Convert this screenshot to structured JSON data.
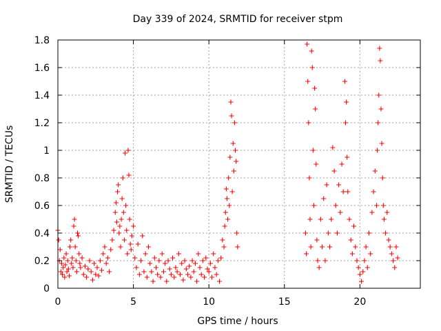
{
  "chart_data": {
    "type": "scatter",
    "title": "Day 339 of 2024, SRMTID for receiver stpm",
    "xlabel": "GPS time / hours",
    "ylabel": "SRMTID / TECUs",
    "xlim": [
      0,
      24
    ],
    "ylim": [
      0,
      1.8
    ],
    "xticks": [
      0,
      5,
      10,
      15,
      20
    ],
    "yticks": [
      0,
      0.2,
      0.4,
      0.6,
      0.8,
      1,
      1.2,
      1.4,
      1.6,
      1.8
    ],
    "xtick_labels": [
      "0",
      "5",
      "10",
      "15",
      "20"
    ],
    "ytick_labels": [
      "0",
      "0.2",
      "0.4",
      "0.6",
      "0.8",
      "1",
      "1.2",
      "1.4",
      "1.6",
      "1.8"
    ],
    "grid": true,
    "marker": "+",
    "color": "#ff0000",
    "series": [
      {
        "name": "SRMTID",
        "points": [
          [
            0.0,
            0.42
          ],
          [
            0.05,
            0.35
          ],
          [
            0.1,
            0.2
          ],
          [
            0.15,
            0.28
          ],
          [
            0.2,
            0.12
          ],
          [
            0.25,
            0.18
          ],
          [
            0.3,
            0.1
          ],
          [
            0.35,
            0.15
          ],
          [
            0.4,
            0.22
          ],
          [
            0.45,
            0.08
          ],
          [
            0.5,
            0.17
          ],
          [
            0.55,
            0.25
          ],
          [
            0.6,
            0.12
          ],
          [
            0.65,
            0.2
          ],
          [
            0.7,
            0.14
          ],
          [
            0.75,
            0.09
          ],
          [
            0.8,
            0.3
          ],
          [
            0.85,
            0.35
          ],
          [
            0.9,
            0.18
          ],
          [
            0.95,
            0.22
          ],
          [
            1.0,
            0.15
          ],
          [
            1.05,
            0.45
          ],
          [
            1.1,
            0.5
          ],
          [
            1.15,
            0.3
          ],
          [
            1.2,
            0.2
          ],
          [
            1.25,
            0.12
          ],
          [
            1.3,
            0.4
          ],
          [
            1.35,
            0.38
          ],
          [
            1.4,
            0.25
          ],
          [
            1.45,
            0.18
          ],
          [
            1.5,
            0.15
          ],
          [
            1.6,
            0.22
          ],
          [
            1.7,
            0.1
          ],
          [
            1.8,
            0.16
          ],
          [
            1.9,
            0.08
          ],
          [
            2.0,
            0.14
          ],
          [
            2.1,
            0.2
          ],
          [
            2.2,
            0.12
          ],
          [
            2.3,
            0.06
          ],
          [
            2.4,
            0.18
          ],
          [
            2.5,
            0.1
          ],
          [
            2.6,
            0.15
          ],
          [
            2.7,
            0.09
          ],
          [
            2.8,
            0.2
          ],
          [
            2.9,
            0.13
          ],
          [
            3.0,
            0.25
          ],
          [
            3.1,
            0.3
          ],
          [
            3.2,
            0.18
          ],
          [
            3.3,
            0.22
          ],
          [
            3.4,
            0.12
          ],
          [
            3.5,
            0.28
          ],
          [
            3.6,
            0.35
          ],
          [
            3.7,
            0.42
          ],
          [
            3.8,
            0.55
          ],
          [
            3.85,
            0.62
          ],
          [
            3.9,
            0.48
          ],
          [
            3.95,
            0.7
          ],
          [
            4.0,
            0.75
          ],
          [
            4.05,
            0.4
          ],
          [
            4.1,
            0.45
          ],
          [
            4.15,
            0.3
          ],
          [
            4.2,
            0.5
          ],
          [
            4.25,
            0.65
          ],
          [
            4.3,
            0.8
          ],
          [
            4.35,
            0.55
          ],
          [
            4.4,
            0.35
          ],
          [
            4.45,
            0.98
          ],
          [
            4.5,
            0.6
          ],
          [
            4.55,
            0.42
          ],
          [
            4.6,
            0.25
          ],
          [
            4.65,
            1.0
          ],
          [
            4.7,
            0.82
          ],
          [
            4.75,
            0.5
          ],
          [
            4.8,
            0.32
          ],
          [
            4.85,
            0.28
          ],
          [
            4.9,
            0.38
          ],
          [
            5.0,
            0.45
          ],
          [
            5.1,
            0.22
          ],
          [
            5.2,
            0.15
          ],
          [
            5.3,
            0.32
          ],
          [
            5.4,
            0.1
          ],
          [
            5.5,
            0.2
          ],
          [
            5.6,
            0.38
          ],
          [
            5.7,
            0.12
          ],
          [
            5.8,
            0.25
          ],
          [
            5.9,
            0.08
          ],
          [
            6.0,
            0.3
          ],
          [
            6.1,
            0.18
          ],
          [
            6.2,
            0.12
          ],
          [
            6.3,
            0.05
          ],
          [
            6.4,
            0.22
          ],
          [
            6.5,
            0.15
          ],
          [
            6.6,
            0.1
          ],
          [
            6.7,
            0.2
          ],
          [
            6.8,
            0.08
          ],
          [
            6.9,
            0.25
          ],
          [
            7.0,
            0.12
          ],
          [
            7.1,
            0.18
          ],
          [
            7.2,
            0.05
          ],
          [
            7.3,
            0.2
          ],
          [
            7.4,
            0.14
          ],
          [
            7.5,
            0.1
          ],
          [
            7.6,
            0.22
          ],
          [
            7.7,
            0.08
          ],
          [
            7.8,
            0.15
          ],
          [
            7.9,
            0.12
          ],
          [
            8.0,
            0.25
          ],
          [
            8.1,
            0.1
          ],
          [
            8.2,
            0.18
          ],
          [
            8.3,
            0.06
          ],
          [
            8.4,
            0.2
          ],
          [
            8.5,
            0.14
          ],
          [
            8.6,
            0.1
          ],
          [
            8.7,
            0.16
          ],
          [
            8.8,
            0.08
          ],
          [
            8.9,
            0.2
          ],
          [
            9.0,
            0.12
          ],
          [
            9.1,
            0.18
          ],
          [
            9.2,
            0.05
          ],
          [
            9.3,
            0.25
          ],
          [
            9.4,
            0.15
          ],
          [
            9.5,
            0.1
          ],
          [
            9.6,
            0.2
          ],
          [
            9.7,
            0.08
          ],
          [
            9.8,
            0.22
          ],
          [
            9.9,
            0.14
          ],
          [
            10.0,
            0.12
          ],
          [
            10.1,
            0.18
          ],
          [
            10.2,
            0.08
          ],
          [
            10.3,
            0.25
          ],
          [
            10.4,
            0.15
          ],
          [
            10.5,
            0.1
          ],
          [
            10.6,
            0.2
          ],
          [
            10.7,
            0.05
          ],
          [
            10.8,
            0.22
          ],
          [
            10.9,
            0.35
          ],
          [
            11.0,
            0.3
          ],
          [
            11.05,
            0.45
          ],
          [
            11.1,
            0.55
          ],
          [
            11.15,
            0.72
          ],
          [
            11.2,
            0.65
          ],
          [
            11.25,
            0.5
          ],
          [
            11.3,
            0.8
          ],
          [
            11.35,
            0.6
          ],
          [
            11.4,
            0.95
          ],
          [
            11.45,
            1.35
          ],
          [
            11.5,
            1.25
          ],
          [
            11.55,
            0.7
          ],
          [
            11.6,
            1.05
          ],
          [
            11.65,
            0.85
          ],
          [
            11.7,
            1.2
          ],
          [
            11.75,
            1.0
          ],
          [
            11.8,
            0.92
          ],
          [
            11.85,
            0.4
          ],
          [
            11.9,
            0.3
          ],
          [
            16.4,
            0.4
          ],
          [
            16.45,
            0.25
          ],
          [
            16.5,
            1.77
          ],
          [
            16.55,
            1.5
          ],
          [
            16.6,
            1.2
          ],
          [
            16.65,
            0.8
          ],
          [
            16.7,
            0.5
          ],
          [
            16.75,
            0.3
          ],
          [
            16.8,
            1.72
          ],
          [
            16.85,
            1.6
          ],
          [
            16.9,
            1.0
          ],
          [
            16.95,
            0.6
          ],
          [
            17.0,
            1.45
          ],
          [
            17.05,
            1.3
          ],
          [
            17.1,
            0.9
          ],
          [
            17.15,
            0.35
          ],
          [
            17.2,
            0.2
          ],
          [
            17.3,
            0.15
          ],
          [
            17.4,
            0.5
          ],
          [
            17.5,
            0.3
          ],
          [
            17.6,
            0.65
          ],
          [
            17.7,
            0.2
          ],
          [
            17.8,
            0.75
          ],
          [
            17.9,
            0.4
          ],
          [
            18.0,
            0.3
          ],
          [
            18.1,
            0.5
          ],
          [
            18.2,
            1.02
          ],
          [
            18.3,
            0.85
          ],
          [
            18.4,
            0.6
          ],
          [
            18.5,
            0.4
          ],
          [
            18.6,
            0.75
          ],
          [
            18.7,
            0.55
          ],
          [
            18.8,
            0.9
          ],
          [
            18.9,
            0.7
          ],
          [
            19.0,
            1.5
          ],
          [
            19.05,
            1.2
          ],
          [
            19.1,
            1.35
          ],
          [
            19.15,
            0.95
          ],
          [
            19.2,
            0.7
          ],
          [
            19.3,
            0.5
          ],
          [
            19.4,
            0.35
          ],
          [
            19.5,
            0.25
          ],
          [
            19.6,
            0.45
          ],
          [
            19.7,
            0.3
          ],
          [
            19.8,
            0.2
          ],
          [
            19.9,
            0.15
          ],
          [
            20.0,
            0.1
          ],
          [
            20.1,
            0.05
          ],
          [
            20.2,
            0.12
          ],
          [
            20.3,
            0.2
          ],
          [
            20.4,
            0.3
          ],
          [
            20.5,
            0.15
          ],
          [
            20.6,
            0.4
          ],
          [
            20.7,
            0.25
          ],
          [
            20.8,
            0.55
          ],
          [
            20.9,
            0.7
          ],
          [
            21.0,
            0.85
          ],
          [
            21.1,
            0.6
          ],
          [
            21.15,
            1.0
          ],
          [
            21.2,
            1.2
          ],
          [
            21.25,
            1.4
          ],
          [
            21.3,
            1.74
          ],
          [
            21.35,
            1.65
          ],
          [
            21.4,
            1.3
          ],
          [
            21.45,
            1.05
          ],
          [
            21.5,
            0.8
          ],
          [
            21.55,
            0.6
          ],
          [
            21.6,
            0.5
          ],
          [
            21.7,
            0.4
          ],
          [
            21.8,
            0.55
          ],
          [
            21.9,
            0.35
          ],
          [
            22.0,
            0.3
          ],
          [
            22.1,
            0.25
          ],
          [
            22.2,
            0.2
          ],
          [
            22.3,
            0.15
          ],
          [
            22.4,
            0.3
          ],
          [
            22.5,
            0.22
          ]
        ]
      }
    ]
  }
}
